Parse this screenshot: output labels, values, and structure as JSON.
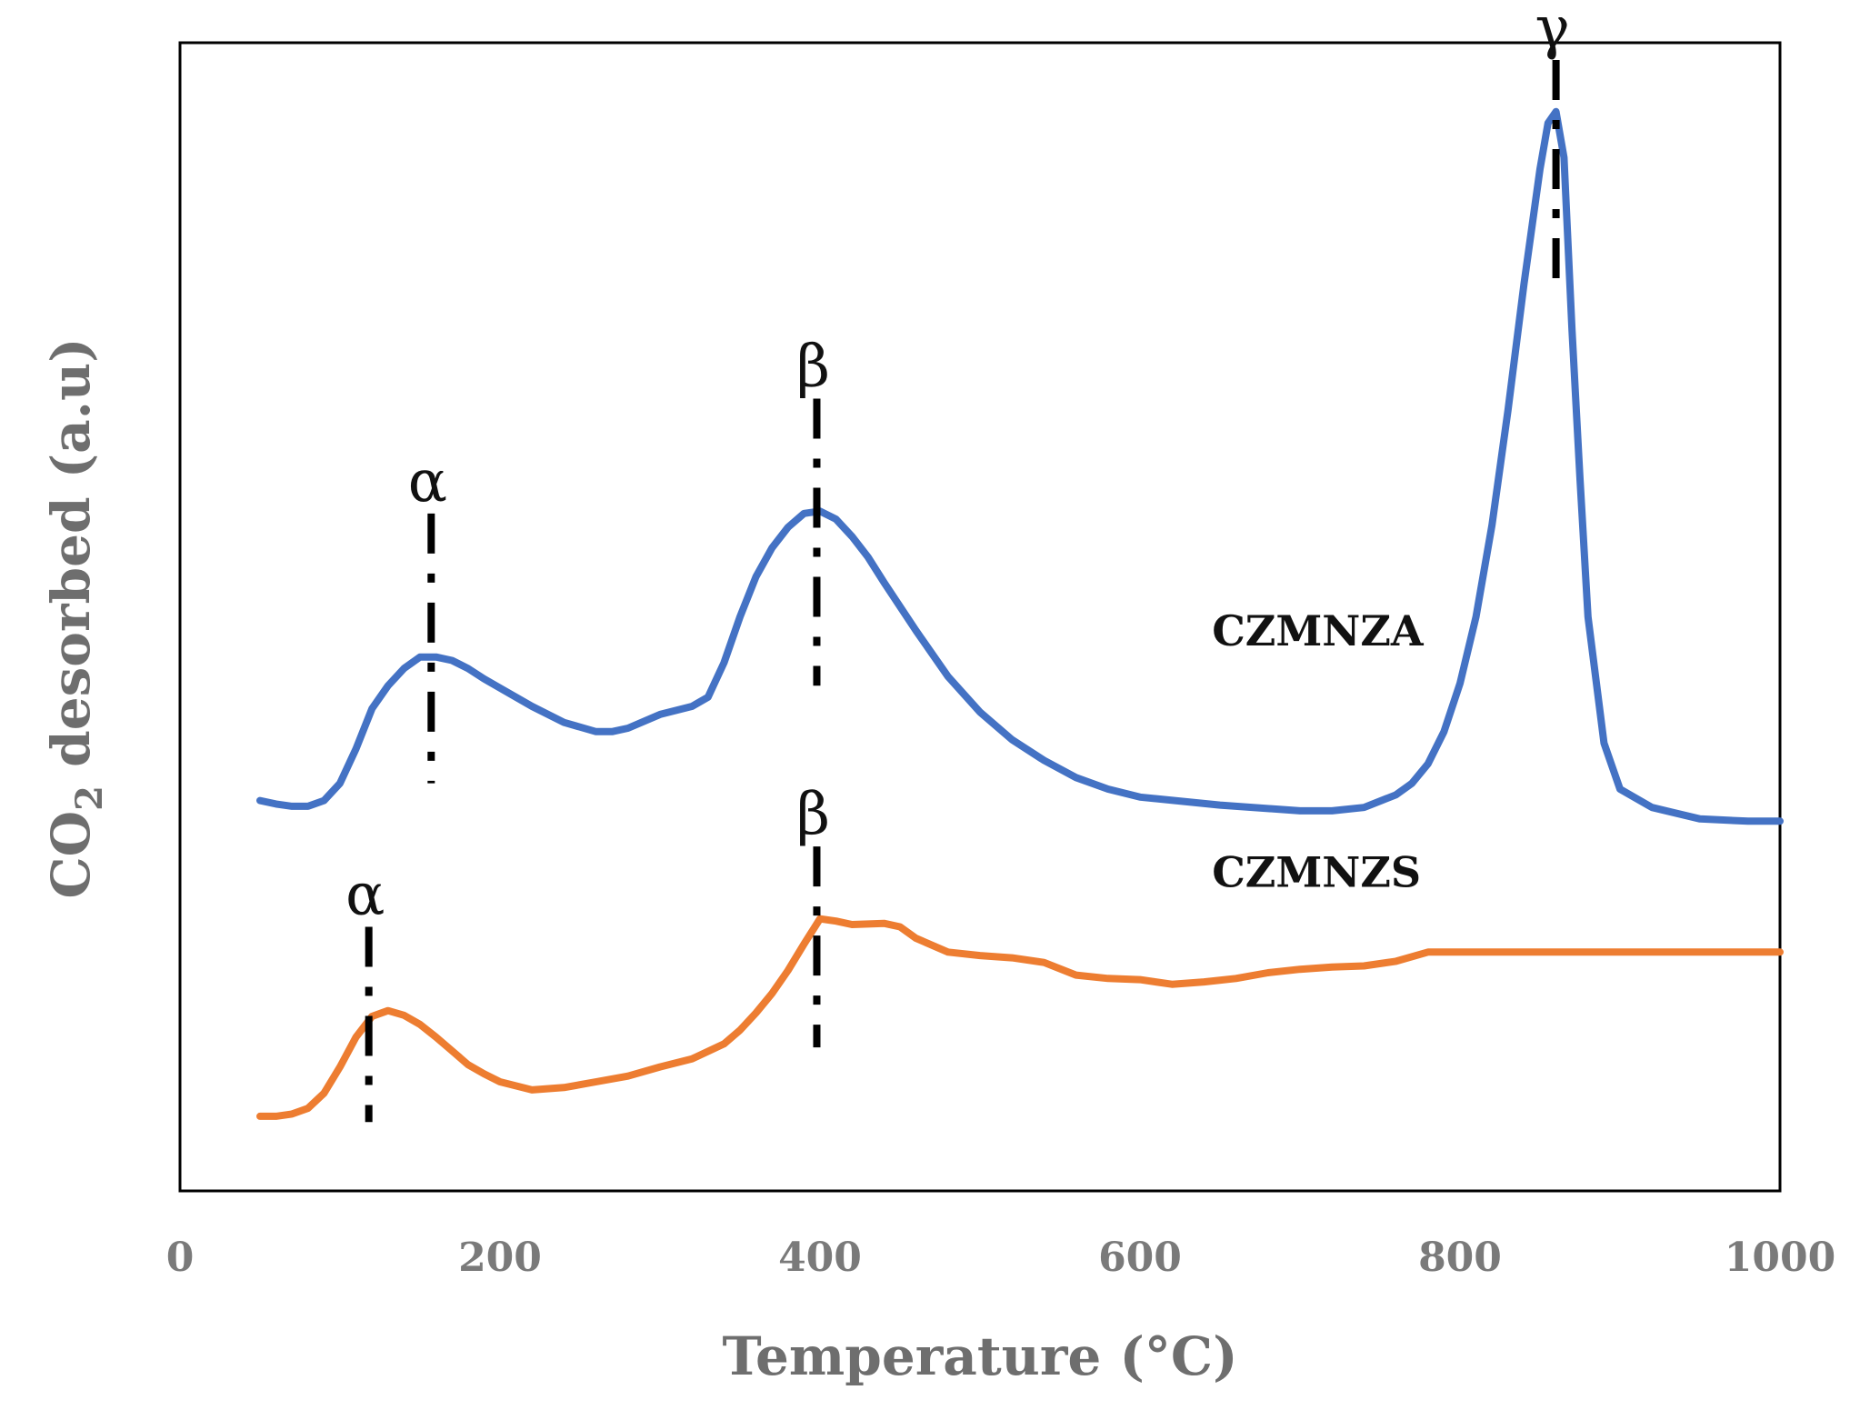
{
  "chart_data": {
    "type": "line",
    "title": "",
    "xlabel": "Temperature (°C)",
    "ylabel_main": "CO",
    "ylabel_sub": "2",
    "ylabel_rest": " desorbed (a.u)",
    "xlim": [
      0,
      1000
    ],
    "ylim": [
      0,
      100
    ],
    "xticks": [
      0,
      200,
      400,
      600,
      800,
      1000
    ],
    "xtick_labels": [
      "0",
      "200",
      "400",
      "600",
      "800",
      "1000"
    ],
    "grid": false,
    "series": [
      {
        "name": "CZMNZA",
        "color": "#4472c4",
        "x": [
          50,
          60,
          70,
          80,
          90,
          100,
          110,
          120,
          130,
          140,
          150,
          160,
          170,
          180,
          190,
          200,
          220,
          240,
          260,
          270,
          280,
          300,
          320,
          330,
          340,
          350,
          360,
          370,
          380,
          390,
          400,
          410,
          420,
          430,
          440,
          460,
          480,
          500,
          520,
          540,
          560,
          580,
          600,
          650,
          700,
          720,
          740,
          760,
          770,
          780,
          790,
          800,
          810,
          820,
          830,
          840,
          850,
          855,
          860,
          865,
          870,
          875,
          880,
          890,
          900,
          920,
          950,
          980,
          995,
          1000
        ],
        "y": [
          34.0,
          33.7,
          33.5,
          33.5,
          34.0,
          35.5,
          38.5,
          42.0,
          44.0,
          45.5,
          46.5,
          46.5,
          46.2,
          45.5,
          44.6,
          43.8,
          42.2,
          40.8,
          40.0,
          40.0,
          40.3,
          41.5,
          42.2,
          43.0,
          46.0,
          50.0,
          53.5,
          56.0,
          57.8,
          59.0,
          59.2,
          58.5,
          57.0,
          55.2,
          53.0,
          48.8,
          44.8,
          41.7,
          39.3,
          37.5,
          36.0,
          35.0,
          34.3,
          33.6,
          33.1,
          33.1,
          33.4,
          34.5,
          35.5,
          37.2,
          40.0,
          44.2,
          50.0,
          58.0,
          68.0,
          79.0,
          89.0,
          93.0,
          94.0,
          90.0,
          75.0,
          62.0,
          50.0,
          39.0,
          35.0,
          33.4,
          32.4,
          32.2,
          32.2,
          32.2
        ]
      },
      {
        "name": "CZMNZS",
        "color": "#ed7d31",
        "x": [
          50,
          60,
          70,
          80,
          90,
          100,
          110,
          120,
          130,
          140,
          150,
          160,
          170,
          180,
          190,
          200,
          220,
          240,
          260,
          280,
          300,
          320,
          340,
          350,
          360,
          370,
          380,
          390,
          400,
          410,
          420,
          440,
          450,
          460,
          480,
          500,
          520,
          540,
          560,
          580,
          600,
          620,
          640,
          660,
          680,
          700,
          720,
          740,
          760,
          780,
          800,
          850,
          900,
          950,
          1000
        ],
        "y": [
          6.5,
          6.5,
          6.7,
          7.2,
          8.5,
          10.8,
          13.4,
          15.2,
          15.7,
          15.3,
          14.5,
          13.4,
          12.2,
          11.0,
          10.2,
          9.5,
          8.8,
          9.0,
          9.5,
          10.0,
          10.8,
          11.5,
          12.8,
          14.0,
          15.5,
          17.2,
          19.2,
          21.5,
          23.7,
          23.5,
          23.2,
          23.3,
          23.0,
          22.0,
          20.8,
          20.5,
          20.3,
          19.9,
          18.8,
          18.5,
          18.4,
          18.0,
          18.2,
          18.5,
          19.0,
          19.3,
          19.5,
          19.6,
          20.0,
          20.8,
          20.8,
          20.8,
          20.8,
          20.8,
          20.8
        ]
      }
    ],
    "series_labels": [
      {
        "text": "CZMNZA",
        "series": "CZMNZA",
        "x": 645,
        "y": 47.5
      },
      {
        "text": "CZMNZS",
        "series": "CZMNZS",
        "x": 645,
        "y": 26.5
      }
    ],
    "annotations": [
      {
        "symbol": "α",
        "series": "CZMNZA",
        "x": 157,
        "y_top": 59.0,
        "y_bottom": 35.5
      },
      {
        "symbol": "β",
        "series": "CZMNZA",
        "x": 398,
        "y_top": 69.0,
        "y_bottom": 44.0
      },
      {
        "symbol": "γ",
        "series": "CZMNZA",
        "x": 860,
        "y_top": 98.5,
        "y_bottom": 78.5
      },
      {
        "symbol": "α",
        "series": "CZMNZS",
        "x": 118,
        "y_top": 23.0,
        "y_bottom": 6.0
      },
      {
        "symbol": "β",
        "series": "CZMNZS",
        "x": 398,
        "y_top": 30.0,
        "y_bottom": 12.5
      }
    ]
  }
}
